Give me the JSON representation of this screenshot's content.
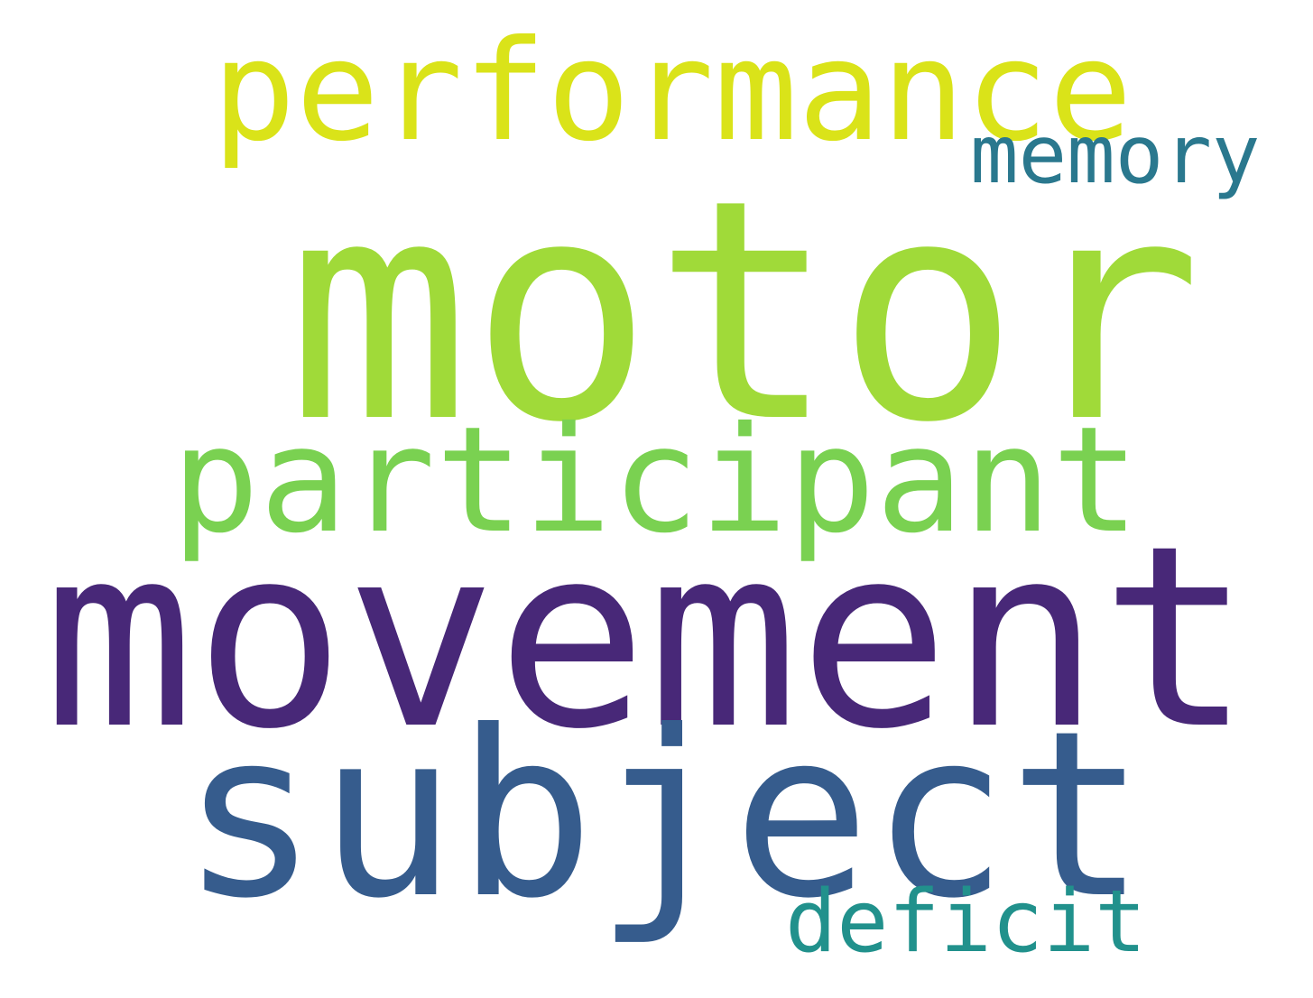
{
  "words": [
    {
      "id": "motor",
      "text": "motor",
      "color": "#a0da39"
    },
    {
      "id": "movement",
      "text": "movement",
      "color": "#482878"
    },
    {
      "id": "subject",
      "text": "subject",
      "color": "#365c8d"
    },
    {
      "id": "participant",
      "text": "participant",
      "color": "#7ad151"
    },
    {
      "id": "performance",
      "text": "performance",
      "color": "#dae319"
    },
    {
      "id": "memory",
      "text": "memory",
      "color": "#2a788e"
    },
    {
      "id": "deficit",
      "text": "deficit",
      "color": "#21918c"
    }
  ]
}
